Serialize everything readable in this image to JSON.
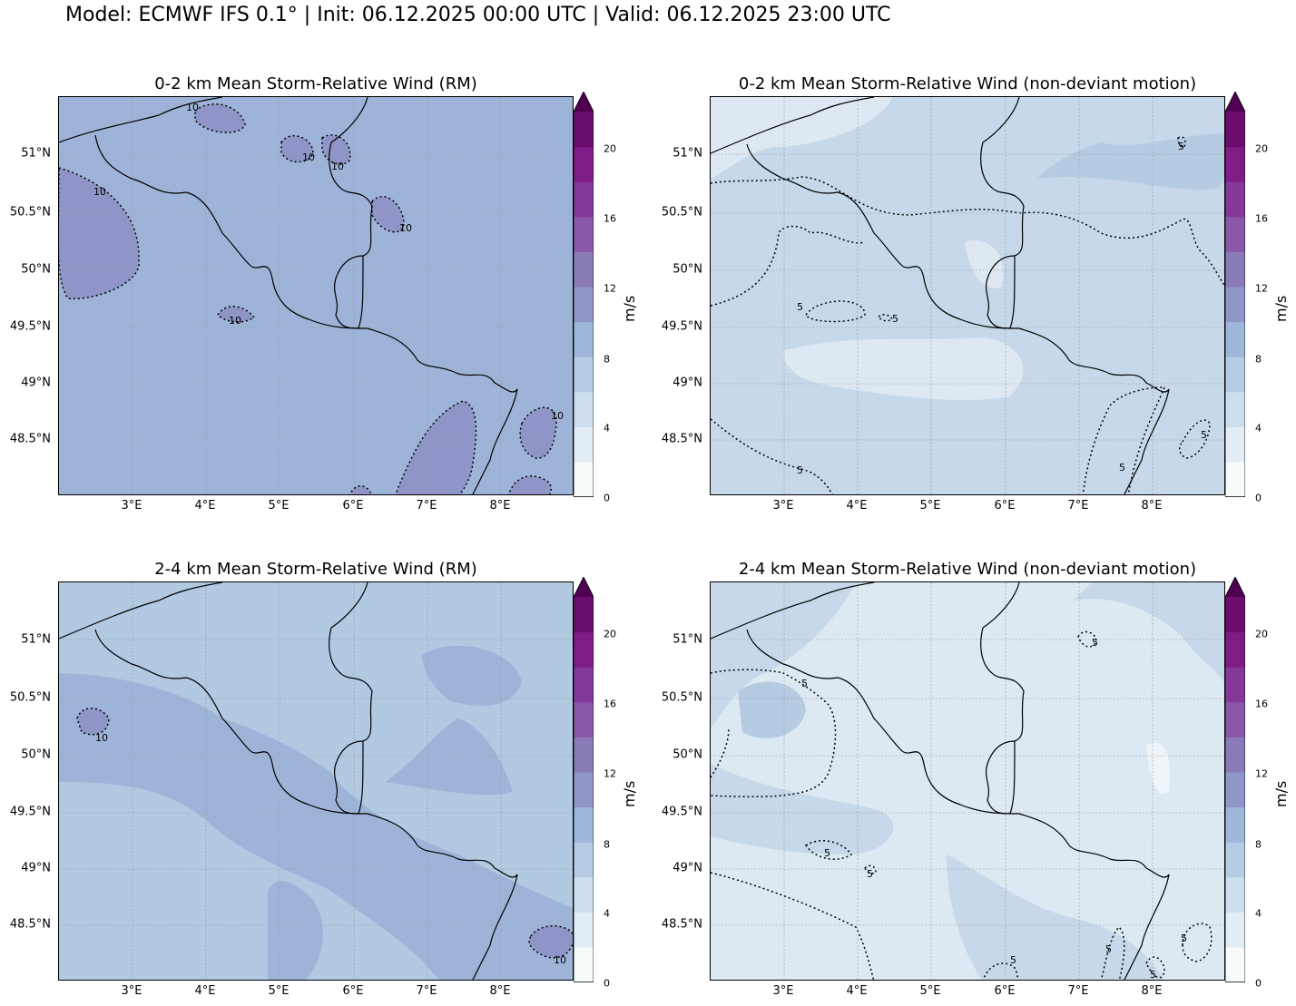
{
  "header": {
    "suptitle": "Model: ECMWF IFS 0.1° | Init: 06.12.2025 00:00 UTC | Valid: 06.12.2025 23:00 UTC"
  },
  "colors": {
    "levels": [
      "#f7fbfc",
      "#e3edf5",
      "#cddfee",
      "#b6cce4",
      "#9db6da",
      "#8f96c7",
      "#8b7ab8",
      "#8a57a9",
      "#84399a",
      "#7f1c86",
      "#6b0d6e",
      "#4f0050"
    ],
    "border": "#000000",
    "grid": "#999999"
  },
  "axes": {
    "lat_labels": [
      "51°N",
      "50.5°N",
      "50°N",
      "49.5°N",
      "49°N",
      "48.5°N"
    ],
    "lon_labels": [
      "3°E",
      "4°E",
      "5°E",
      "6°E",
      "7°E",
      "8°E"
    ]
  },
  "colorbar": {
    "unit": "m/s",
    "ticks": [
      "20",
      "16",
      "12",
      "8",
      "4",
      "0"
    ],
    "bounds": [
      0,
      2,
      4,
      6,
      8,
      10,
      12,
      14,
      16,
      18,
      20,
      22
    ],
    "extend": "max"
  },
  "panels": [
    {
      "title": "0-2 km Mean Storm-Relative Wind (RM)",
      "contour_label": "10",
      "base_level": 4
    },
    {
      "title": "0-2 km Mean Storm-Relative Wind (non-deviant motion)",
      "contour_label": "5",
      "base_level": 2
    },
    {
      "title": "2-4 km Mean Storm-Relative Wind (RM)",
      "contour_label": "10",
      "base_level": 3
    },
    {
      "title": "2-4 km Mean Storm-Relative Wind (non-deviant motion)",
      "contour_label": "5",
      "base_level": 1
    }
  ]
}
